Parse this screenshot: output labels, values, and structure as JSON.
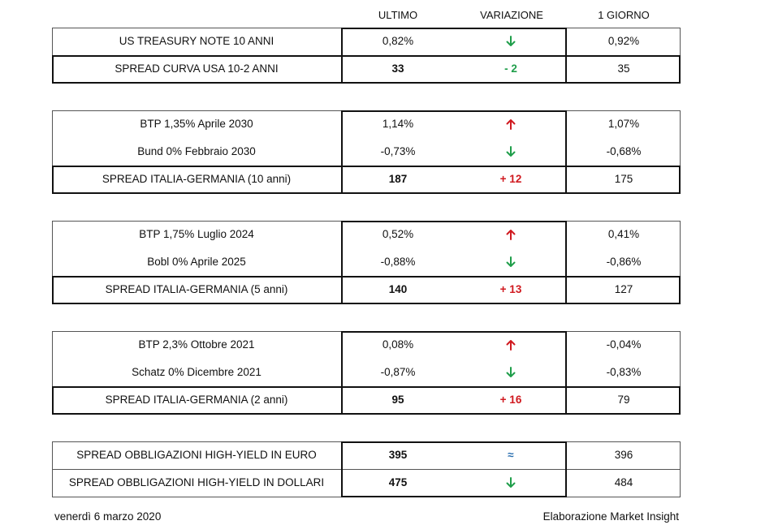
{
  "headers": {
    "ultimo": "ULTIMO",
    "variazione": "VARIAZIONE",
    "giorno": "1 GIORNO"
  },
  "colors": {
    "down": "#1f9e4a",
    "up": "#d0191f",
    "flat": "#2a6fb0"
  },
  "block1": {
    "rows": [
      {
        "name": "US TREASURY NOTE 10 ANNI",
        "ultimo": "0,82%",
        "variazione_icon": "arrow-down-icon",
        "giorno": "0,92%"
      },
      {
        "name": "SPREAD CURVA USA 10-2 ANNI",
        "ultimo": "33",
        "variazione": "- 2",
        "giorno": "35"
      }
    ]
  },
  "block2": {
    "rows": [
      {
        "name": "BTP 1,35% Aprile 2030",
        "ultimo": "1,14%",
        "variazione_icon": "arrow-up-icon",
        "giorno": "1,07%"
      },
      {
        "name": "Bund 0% Febbraio 2030",
        "ultimo": "-0,73%",
        "variazione_icon": "arrow-down-icon",
        "giorno": "-0,68%"
      },
      {
        "name": "SPREAD ITALIA-GERMANIA (10 anni)",
        "ultimo": "187",
        "variazione": "+ 12",
        "giorno": "175"
      }
    ]
  },
  "block3": {
    "rows": [
      {
        "name": "BTP 1,75% Luglio 2024",
        "ultimo": "0,52%",
        "variazione_icon": "arrow-up-icon",
        "giorno": "0,41%"
      },
      {
        "name": "Bobl 0% Aprile 2025",
        "ultimo": "-0,88%",
        "variazione_icon": "arrow-down-icon",
        "giorno": "-0,86%"
      },
      {
        "name": "SPREAD ITALIA-GERMANIA (5 anni)",
        "ultimo": "140",
        "variazione": "+ 13",
        "giorno": "127"
      }
    ]
  },
  "block4": {
    "rows": [
      {
        "name": "BTP 2,3% Ottobre 2021",
        "ultimo": "0,08%",
        "variazione_icon": "arrow-up-icon",
        "giorno": "-0,04%"
      },
      {
        "name": "Schatz 0% Dicembre 2021",
        "ultimo": "-0,87%",
        "variazione_icon": "arrow-down-icon",
        "giorno": "-0,83%"
      },
      {
        "name": "SPREAD ITALIA-GERMANIA (2 anni)",
        "ultimo": "95",
        "variazione": "+ 16",
        "giorno": "79"
      }
    ]
  },
  "block5": {
    "rows": [
      {
        "name": "SPREAD OBBLIGAZIONI HIGH-YIELD IN EURO",
        "ultimo": "395",
        "variazione": "≈",
        "giorno": "396"
      },
      {
        "name": "SPREAD OBBLIGAZIONI HIGH-YIELD IN DOLLARI",
        "ultimo": "475",
        "variazione_icon": "arrow-down-icon",
        "giorno": "484"
      }
    ]
  },
  "footer": {
    "date": "venerdì 6 marzo 2020",
    "credit": "Elaborazione Market Insight"
  }
}
